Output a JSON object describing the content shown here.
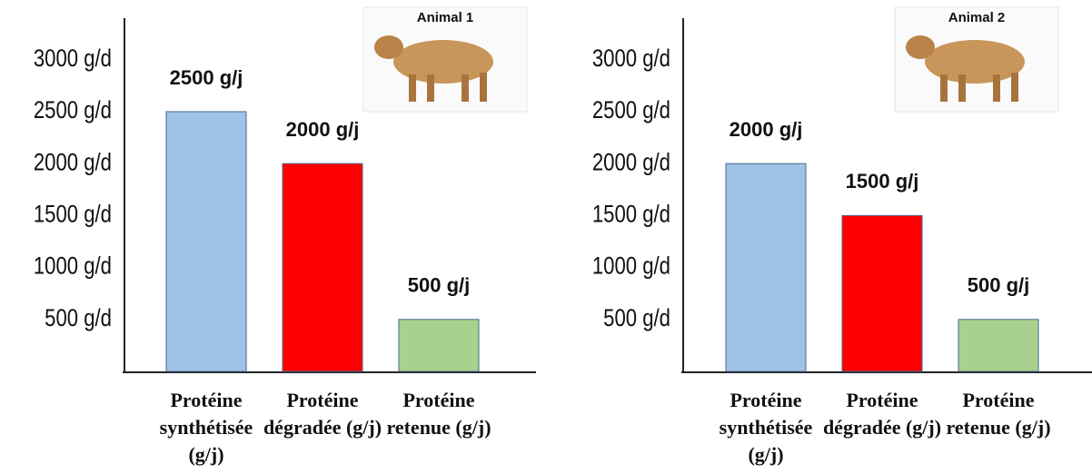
{
  "chart_data": [
    {
      "type": "bar",
      "title": "Animal 1",
      "categories": [
        "Protéine synthétisée (g/j)",
        "Protéine dégradée (g/j)",
        "Protéine retenue (g/j)"
      ],
      "values": [
        2500,
        2000,
        500
      ],
      "value_labels": [
        "2500 g/j",
        "2000 g/j",
        "500 g/j"
      ],
      "colors": [
        "#9dc3e6",
        "#ff0000",
        "#a9d18e"
      ],
      "ylim": [
        0,
        3400
      ],
      "yticks": [
        {
          "value": 500,
          "label": "500 g/d"
        },
        {
          "value": 1000,
          "label": "1000 g/d"
        },
        {
          "value": 1500,
          "label": "1500 g/d"
        },
        {
          "value": 2000,
          "label": "2000 g/d"
        },
        {
          "value": 2500,
          "label": "2500 g/d"
        },
        {
          "value": 3000,
          "label": "3000 g/d"
        }
      ]
    },
    {
      "type": "bar",
      "title": "Animal 2",
      "categories": [
        "Protéine synthétisée (g/j)",
        "Protéine dégradée (g/j)",
        "Protéine retenue (g/j)"
      ],
      "values": [
        2000,
        1500,
        500
      ],
      "value_labels": [
        "2000 g/j",
        "1500 g/j",
        "500 g/j"
      ],
      "colors": [
        "#9dc3e6",
        "#ff0000",
        "#a9d18e"
      ],
      "ylim": [
        0,
        3400
      ],
      "yticks": [
        {
          "value": 500,
          "label": "500 g/d"
        },
        {
          "value": 1000,
          "label": "1000 g/d"
        },
        {
          "value": 1500,
          "label": "1500 g/d"
        },
        {
          "value": 2000,
          "label": "2000 g/d"
        },
        {
          "value": 2500,
          "label": "2500 g/d"
        },
        {
          "value": 3000,
          "label": "3000 g/d"
        }
      ]
    }
  ]
}
